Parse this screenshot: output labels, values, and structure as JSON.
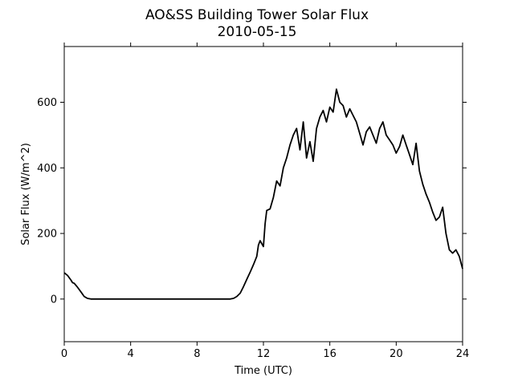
{
  "chart_data": {
    "type": "line",
    "title": "AO&SS Building Tower Solar Flux",
    "subtitle": "2010-05-15",
    "xlabel": "Time (UTC)",
    "ylabel": "Solar Flux (W/m^2)",
    "xlim": [
      0,
      24
    ],
    "ylim": [
      -130,
      770
    ],
    "xticks": [
      0,
      4,
      8,
      12,
      16,
      20,
      24
    ],
    "yticks": [
      0,
      200,
      400,
      600
    ],
    "grid": false,
    "legend": "none",
    "line_color": "#000000",
    "series": [
      {
        "x": [
          0,
          0.2,
          0.4,
          0.5,
          0.6,
          0.8,
          1.0,
          1.2,
          1.4,
          1.6,
          1.8,
          2.0,
          4.0,
          6.0,
          8.0,
          10.0,
          10.2,
          10.4,
          10.6,
          10.8,
          11.0,
          11.2,
          11.4,
          11.6,
          11.7,
          11.8,
          12.0,
          12.1,
          12.2,
          12.4,
          12.6,
          12.8,
          13.0,
          13.2,
          13.4,
          13.6,
          13.8,
          14.0,
          14.2,
          14.4,
          14.6,
          14.8,
          15.0,
          15.2,
          15.4,
          15.6,
          15.8,
          16.0,
          16.2,
          16.4,
          16.6,
          16.8,
          17.0,
          17.2,
          17.4,
          17.6,
          17.8,
          18.0,
          18.2,
          18.4,
          18.6,
          18.8,
          19.0,
          19.2,
          19.4,
          19.6,
          19.8,
          20.0,
          20.2,
          20.4,
          20.6,
          20.8,
          21.0,
          21.2,
          21.4,
          21.6,
          21.8,
          22.0,
          22.2,
          22.4,
          22.6,
          22.8,
          23.0,
          23.2,
          23.4,
          23.6,
          23.8,
          24.0
        ],
        "values": [
          80,
          72,
          58,
          50,
          48,
          36,
          22,
          8,
          2,
          0,
          0,
          0,
          0,
          0,
          0,
          0,
          2,
          8,
          18,
          38,
          60,
          82,
          105,
          130,
          165,
          178,
          160,
          230,
          270,
          275,
          310,
          360,
          345,
          400,
          430,
          470,
          500,
          520,
          455,
          540,
          430,
          480,
          420,
          520,
          555,
          575,
          540,
          585,
          570,
          640,
          600,
          590,
          555,
          580,
          560,
          540,
          505,
          470,
          510,
          525,
          500,
          475,
          520,
          540,
          500,
          485,
          470,
          445,
          465,
          500,
          470,
          440,
          410,
          475,
          390,
          350,
          320,
          295,
          265,
          240,
          250,
          280,
          200,
          150,
          140,
          150,
          130,
          92
        ]
      }
    ]
  }
}
